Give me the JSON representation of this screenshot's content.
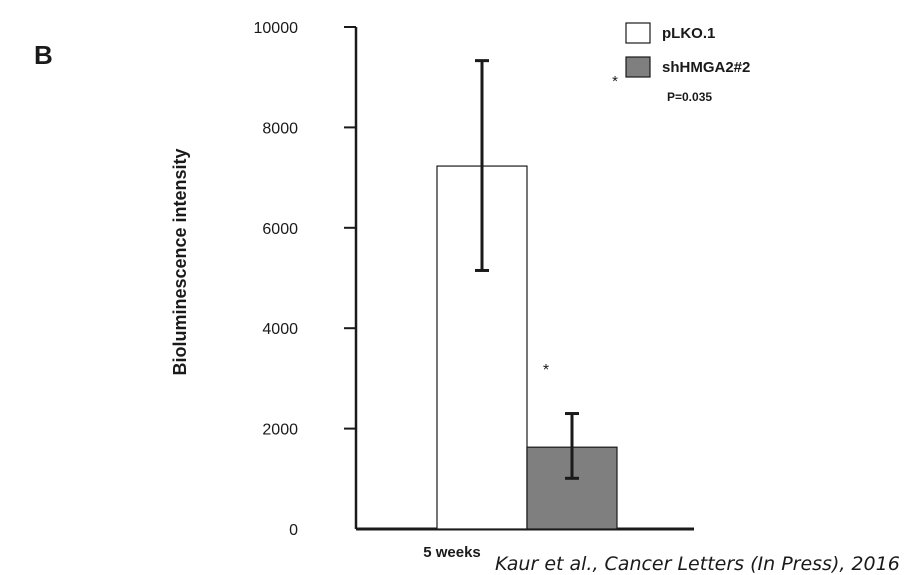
{
  "panel_label": "B",
  "citation": "Kaur et al., Cancer Letters (In Press), 2016",
  "chart_data": {
    "type": "bar",
    "categories": [
      "5 weeks"
    ],
    "series": [
      {
        "name": "pLKO.1",
        "values": [
          7230
        ],
        "error_low": [
          5150
        ],
        "error_high": [
          9330
        ],
        "color": "#ffffff"
      },
      {
        "name": "shHMGA2#2",
        "values": [
          1630
        ],
        "error_low": [
          1010
        ],
        "error_high": [
          2300
        ],
        "color": "#7f7f7f"
      }
    ],
    "title": "",
    "xlabel": "",
    "ylabel": "Bioluminescence intensity",
    "ylim": [
      0,
      10000
    ],
    "yticks": [
      0,
      2000,
      4000,
      6000,
      8000,
      10000
    ],
    "grid": false,
    "legend_position": "top-right",
    "significance_marker": "*",
    "p_value_label": "P=0.035"
  }
}
